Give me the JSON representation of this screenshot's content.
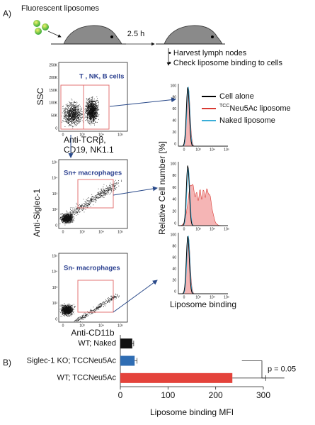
{
  "panel_a": {
    "label": "A)",
    "title": "Fluorescent liposomes",
    "time": "2.5 h",
    "steps": [
      "• Harvest lymph nodes",
      "• Check liposome binding to cells"
    ],
    "dot_plots": {
      "y_label_1": "SSC",
      "x_label_1": [
        "Anti-TCRβ,",
        "CD19, NK1.1"
      ],
      "y_label": "Anti-Siglec-1",
      "x_label": "Anti-CD11b",
      "ssc_ticks": [
        "250K",
        "200K",
        "150K",
        "100K",
        "50K",
        "0"
      ],
      "log_ticks": [
        "10⁵",
        "10⁴",
        "10³",
        "10²",
        "0"
      ],
      "x_ticks": [
        "0",
        "10³",
        "10⁴",
        "10⁵"
      ],
      "gates": [
        "T , NK, B cells",
        "Sn+ macrophages",
        "Sn- macrophages"
      ]
    },
    "histograms": {
      "y_label": "Relative Cell number [%]",
      "x_label": "Liposome binding",
      "y_ticks": [
        "100",
        "80",
        "60",
        "40",
        "20",
        "0"
      ],
      "x_ticks": [
        "0",
        "10³",
        "10⁴",
        "10⁵"
      ],
      "legend": [
        {
          "text": "Cell alone",
          "color": "#000000"
        },
        {
          "sup": "TCC",
          "text": "Neu5Ac liposome",
          "color": "#d93a33"
        },
        {
          "text": "Naked liposome",
          "color": "#3aaed8"
        }
      ]
    }
  },
  "chart_data": {
    "type": "bar",
    "orientation": "horizontal",
    "label": "B)",
    "categories": [
      "WT; Naked",
      "Siglec-1 KO; TCCNeu5Ac",
      "WT; TCCNeu5Ac"
    ],
    "values": [
      25,
      30,
      235
    ],
    "errors": [
      3,
      5,
      70
    ],
    "colors": [
      "#111111",
      "#2f6db3",
      "#e4433b"
    ],
    "xlim": [
      0,
      300
    ],
    "xticks": [
      0,
      100,
      200,
      300
    ],
    "xlabel": "Liposome binding MFI",
    "annotation": "p = 0.05"
  }
}
